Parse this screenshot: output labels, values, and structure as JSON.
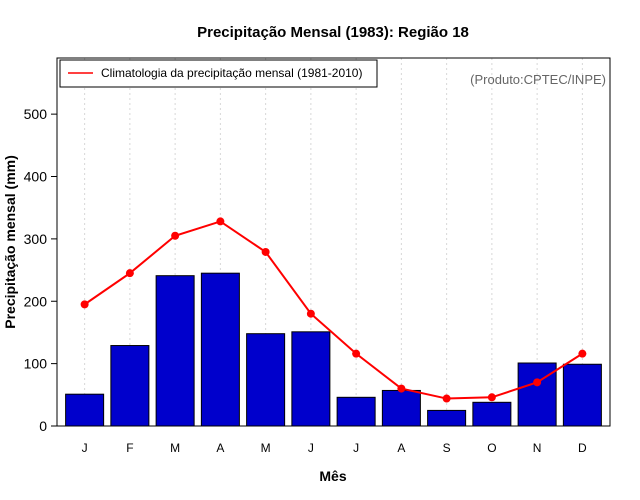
{
  "chart_data": {
    "type": "bar",
    "title": "Precipitação Mensal (1983): Região 18",
    "xlabel": "Mês",
    "ylabel": "Precipitação mensal (mm)",
    "categories": [
      "J",
      "F",
      "M",
      "A",
      "M",
      "J",
      "J",
      "A",
      "S",
      "O",
      "N",
      "D"
    ],
    "ylim": [
      0,
      590
    ],
    "yticks": [
      0,
      100,
      200,
      300,
      400,
      500
    ],
    "grid": "vertical dotted",
    "legend_position": "top-left",
    "credit": "(Produto:CPTEC/INPE)",
    "series": [
      {
        "name": "Precipitação mensal 1983",
        "type": "bar",
        "color": "#0000CC",
        "values": [
          51,
          129,
          241,
          245,
          148,
          151,
          46,
          57,
          25,
          38,
          101,
          99
        ]
      },
      {
        "name": "Climatologia da precipitação mensal (1981-2010)",
        "type": "line",
        "color": "#FF0000",
        "values": [
          195,
          245,
          305,
          328,
          279,
          180,
          116,
          60,
          44,
          46,
          70,
          116
        ]
      }
    ]
  }
}
